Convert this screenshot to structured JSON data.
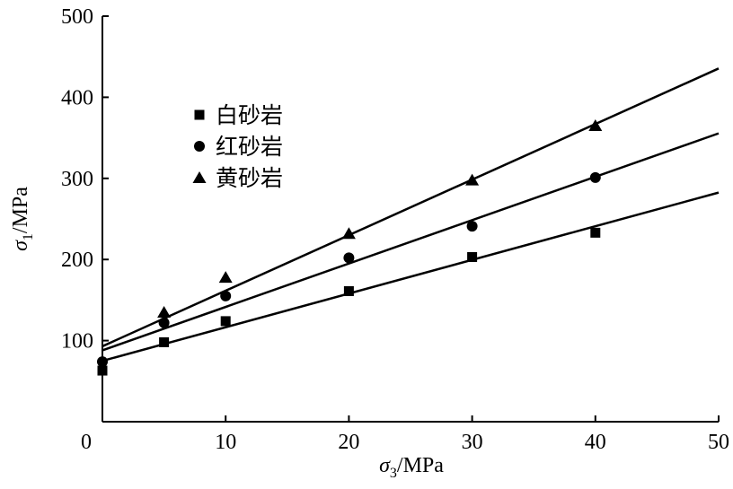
{
  "chart_data": {
    "type": "scatter",
    "xlabel": {
      "symbol": "σ",
      "sub": "3",
      "unit": "/MPa"
    },
    "ylabel": {
      "symbol": "σ",
      "sub": "1",
      "unit": "/MPa"
    },
    "xlim": [
      0,
      50
    ],
    "ylim": [
      0,
      500
    ],
    "xticks": [
      0,
      10,
      20,
      30,
      40,
      50
    ],
    "yticks": [
      100,
      200,
      300,
      400,
      500
    ],
    "grid": false,
    "legend_position": "upper-left",
    "series": [
      {
        "name": "白砂岩",
        "marker": "square",
        "points": [
          [
            0,
            63
          ],
          [
            5,
            98
          ],
          [
            10,
            124
          ],
          [
            20,
            161
          ],
          [
            30,
            203
          ],
          [
            40,
            233
          ]
        ],
        "fit": {
          "intercept": 75,
          "slope": 4.15
        }
      },
      {
        "name": "红砂岩",
        "marker": "circle",
        "points": [
          [
            0,
            74
          ],
          [
            5,
            122
          ],
          [
            10,
            155
          ],
          [
            20,
            202
          ],
          [
            30,
            241
          ],
          [
            40,
            301
          ]
        ],
        "fit": {
          "intercept": 88,
          "slope": 5.35
        }
      },
      {
        "name": "黄砂岩",
        "marker": "triangle",
        "points": [
          [
            5,
            135
          ],
          [
            10,
            178
          ],
          [
            20,
            232
          ],
          [
            30,
            298
          ],
          [
            40,
            365
          ]
        ],
        "fit": {
          "intercept": 93,
          "slope": 6.85
        }
      }
    ]
  }
}
